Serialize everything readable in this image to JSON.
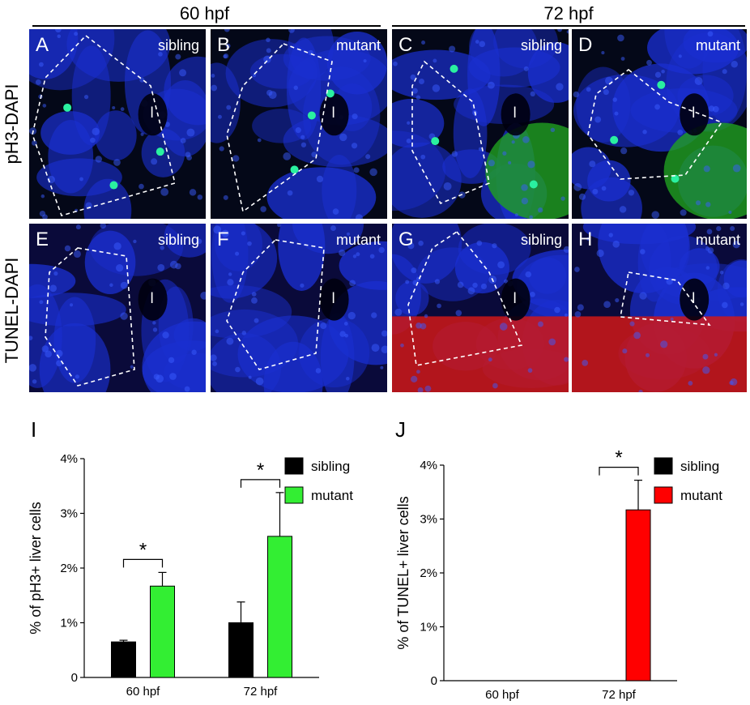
{
  "headers": {
    "left": "60 hpf",
    "right": "72 hpf"
  },
  "row_labels": {
    "top": "pH3-DAPI",
    "bottom": "TUNEL-DAPI"
  },
  "lumen_label": "l",
  "panels": [
    {
      "letter": "A",
      "condition": "sibling",
      "stain": "pH3"
    },
    {
      "letter": "B",
      "condition": "mutant",
      "stain": "pH3"
    },
    {
      "letter": "C",
      "condition": "sibling",
      "stain": "pH3"
    },
    {
      "letter": "D",
      "condition": "mutant",
      "stain": "pH3"
    },
    {
      "letter": "E",
      "condition": "sibling",
      "stain": "TUNEL"
    },
    {
      "letter": "F",
      "condition": "mutant",
      "stain": "TUNEL"
    },
    {
      "letter": "G",
      "condition": "sibling",
      "stain": "TUNEL"
    },
    {
      "letter": "H",
      "condition": "mutant",
      "stain": "TUNEL"
    }
  ],
  "colors": {
    "sibling": "#000000",
    "mutant_I": "#33ee33",
    "mutant_J": "#ff0000",
    "dapi": "#1a2fd0",
    "ph3": "#2af0a0",
    "tunel": "#d01818"
  },
  "chart_data": [
    {
      "letter": "I",
      "type": "bar",
      "ylabel": "% of pH3+ liver cells",
      "categories": [
        "60 hpf",
        "72 hpf"
      ],
      "ylim": [
        0,
        4
      ],
      "yticks": [
        "0",
        "1%",
        "2%",
        "3%",
        "4%"
      ],
      "series": [
        {
          "name": "sibling",
          "values": [
            0.65,
            1.0
          ],
          "errors": [
            0.03,
            0.38
          ]
        },
        {
          "name": "mutant",
          "values": [
            1.67,
            2.58
          ],
          "errors": [
            0.25,
            0.8
          ]
        }
      ],
      "significance": [
        "*",
        "*"
      ],
      "legend": "top-right"
    },
    {
      "letter": "J",
      "type": "bar",
      "ylabel": "% of TUNEL+ liver cells",
      "categories": [
        "60 hpf",
        "72 hpf"
      ],
      "ylim": [
        0,
        4
      ],
      "yticks": [
        "0",
        "1%",
        "2%",
        "3%",
        "4%"
      ],
      "series": [
        {
          "name": "sibling",
          "values": [
            0,
            0
          ],
          "errors": [
            0,
            0
          ]
        },
        {
          "name": "mutant",
          "values": [
            0,
            3.17
          ],
          "errors": [
            0,
            0.55
          ]
        }
      ],
      "significance": [
        "",
        "*"
      ],
      "legend": "top-right"
    }
  ]
}
